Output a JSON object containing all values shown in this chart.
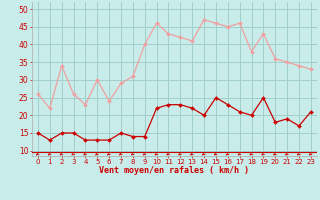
{
  "x": [
    0,
    1,
    2,
    3,
    4,
    5,
    6,
    7,
    8,
    9,
    10,
    11,
    12,
    13,
    14,
    15,
    16,
    17,
    18,
    19,
    20,
    21,
    22,
    23
  ],
  "rafales": [
    26,
    22,
    34,
    26,
    23,
    30,
    24,
    29,
    31,
    40,
    46,
    43,
    42,
    41,
    47,
    46,
    45,
    46,
    38,
    43,
    36,
    35,
    34,
    33
  ],
  "moyen": [
    15,
    13,
    15,
    15,
    13,
    13,
    13,
    15,
    14,
    14,
    22,
    23,
    23,
    22,
    20,
    25,
    23,
    21,
    20,
    25,
    18,
    19,
    17,
    21
  ],
  "bg_color": "#c8ecea",
  "line_color_rafales": "#f0a0a0",
  "line_color_moyen": "#cc0000",
  "grid_color": "#a0d0cc",
  "xlabel": "Vent moyen/en rafales ( km/h )",
  "xlabel_color": "#cc0000",
  "yticks": [
    10,
    15,
    20,
    25,
    30,
    35,
    40,
    45,
    50
  ],
  "ylim": [
    8.5,
    52
  ],
  "xlim": [
    -0.5,
    23.5
  ],
  "arrow_color": "#cc0000",
  "tick_color": "#cc0000",
  "spine_color": "#aaaaaa"
}
